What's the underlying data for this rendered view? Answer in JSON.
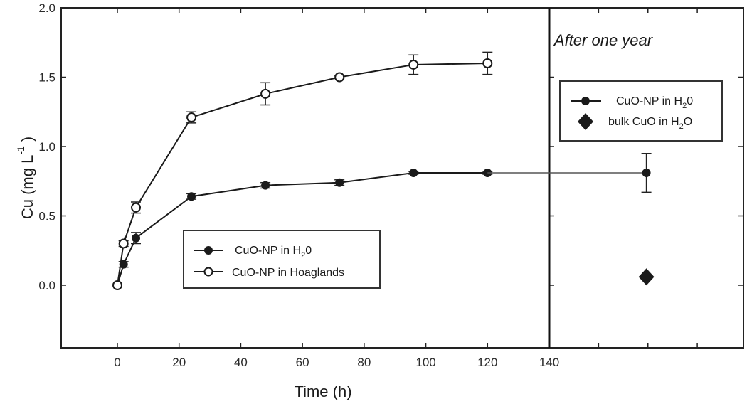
{
  "chart_data": {
    "type": "line",
    "title": "",
    "xlabel": "Time (h)",
    "ylabel": "Cu (mg L-1)",
    "ylabel_parts": {
      "main": "Cu (mg L",
      "sup": "-1",
      "close": ")"
    },
    "xlim": [
      -17.5,
      203
    ],
    "ylim": [
      -0.45,
      2.0
    ],
    "x_ticks": [
      0,
      20,
      40,
      60,
      80,
      100,
      120,
      140
    ],
    "x_tick_labels": [
      "0",
      "20",
      "40",
      "60",
      "80",
      "100",
      "120",
      "140"
    ],
    "y_ticks": [
      0.0,
      0.5,
      1.0,
      1.5,
      2.0
    ],
    "y_tick_labels": [
      "0.0",
      "0.5",
      "1.0",
      "1.5",
      "2.0"
    ],
    "grid": false,
    "divider_x": 140,
    "annotation": "After one year",
    "series": [
      {
        "name": "CuO-NP in H20",
        "marker": "filled-circle",
        "x": [
          0,
          2,
          6,
          24,
          48,
          72,
          96,
          120
        ],
        "values": [
          0.0,
          0.15,
          0.34,
          0.64,
          0.72,
          0.74,
          0.81,
          0.81
        ],
        "errors": [
          0.0,
          0.02,
          0.04,
          0.02,
          0.02,
          0.02,
          0.01,
          0.01
        ]
      },
      {
        "name": "CuO-NP in Hoaglands",
        "marker": "open-circle",
        "x": [
          0,
          2,
          6,
          24,
          48,
          72,
          96,
          120
        ],
        "values": [
          0.0,
          0.3,
          0.56,
          1.21,
          1.38,
          1.5,
          1.59,
          1.6
        ],
        "errors": [
          0.0,
          0.02,
          0.04,
          0.04,
          0.08,
          0.01,
          0.07,
          0.08
        ]
      },
      {
        "name": "CuO-NP in H20 (after one year)",
        "marker": "filled-circle",
        "x": [
          171.5
        ],
        "values": [
          0.81
        ],
        "errors": [
          0.14
        ],
        "connect_from_x": 120
      },
      {
        "name": "bulk CuO in H2O (after one year)",
        "marker": "filled-diamond",
        "x": [
          171.5
        ],
        "values": [
          0.06
        ],
        "errors": [
          0.0
        ]
      }
    ],
    "legends": [
      {
        "position": "left-middle",
        "entries": [
          {
            "label": "CuO-NP in H",
            "sub": "2",
            "tail": "0",
            "marker": "filled-circle"
          },
          {
            "label": "CuO-NP in Hoaglands",
            "sub": "",
            "tail": "",
            "marker": "open-circle"
          }
        ]
      },
      {
        "position": "upper-right",
        "entries": [
          {
            "label": "CuO-NP in H",
            "sub": "2",
            "tail": "0",
            "marker": "filled-circle"
          },
          {
            "label": "bulk CuO in H",
            "sub": "2",
            "tail": "O",
            "marker": "filled-diamond"
          }
        ]
      }
    ]
  }
}
